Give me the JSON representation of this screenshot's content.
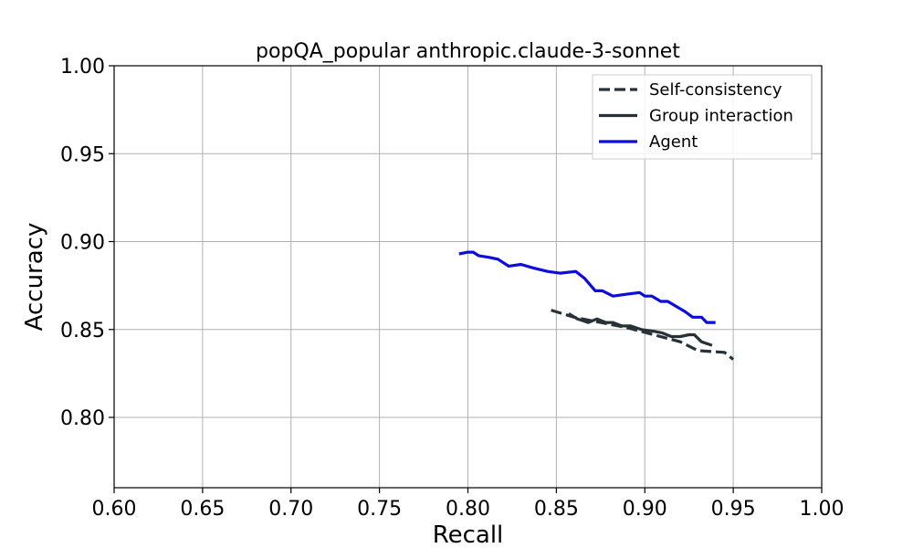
{
  "chart_data": {
    "type": "line",
    "title": "popQA_popular anthropic.claude-3-sonnet",
    "xlabel": "Recall",
    "ylabel": "Accuracy",
    "xlim": [
      0.6,
      1.0
    ],
    "ylim": [
      0.76,
      1.0
    ],
    "xticks": [
      "0.60",
      "0.65",
      "0.70",
      "0.75",
      "0.80",
      "0.85",
      "0.90",
      "0.95",
      "1.00"
    ],
    "yticks": [
      "0.80",
      "0.85",
      "0.90",
      "0.95",
      "1.00"
    ],
    "grid": true,
    "legend_position": "top-right",
    "series": [
      {
        "name": "Self-consistency",
        "style": "dashed",
        "color": "#263238",
        "x": [
          0.847,
          0.86,
          0.875,
          0.89,
          0.905,
          0.92,
          0.93,
          0.945,
          0.95
        ],
        "y": [
          0.861,
          0.857,
          0.854,
          0.851,
          0.847,
          0.843,
          0.838,
          0.837,
          0.833
        ]
      },
      {
        "name": "Group interaction",
        "style": "solid",
        "color": "#263238",
        "x": [
          0.857,
          0.862,
          0.868,
          0.873,
          0.878,
          0.882,
          0.887,
          0.892,
          0.898,
          0.905,
          0.91,
          0.915,
          0.92,
          0.925,
          0.928,
          0.932,
          0.938
        ],
        "y": [
          0.859,
          0.856,
          0.854,
          0.856,
          0.854,
          0.854,
          0.852,
          0.852,
          0.85,
          0.849,
          0.848,
          0.846,
          0.846,
          0.847,
          0.847,
          0.843,
          0.841
        ]
      },
      {
        "name": "Agent",
        "style": "solid",
        "color": "#0c0cdc",
        "x": [
          0.795,
          0.8,
          0.803,
          0.806,
          0.812,
          0.817,
          0.823,
          0.83,
          0.837,
          0.845,
          0.852,
          0.861,
          0.866,
          0.872,
          0.876,
          0.882,
          0.889,
          0.897,
          0.9,
          0.904,
          0.909,
          0.913,
          0.918,
          0.923,
          0.927,
          0.932,
          0.935,
          0.94
        ],
        "y": [
          0.893,
          0.894,
          0.894,
          0.892,
          0.891,
          0.89,
          0.886,
          0.887,
          0.885,
          0.883,
          0.882,
          0.883,
          0.879,
          0.872,
          0.872,
          0.869,
          0.87,
          0.871,
          0.869,
          0.869,
          0.866,
          0.866,
          0.863,
          0.86,
          0.857,
          0.857,
          0.854,
          0.854
        ]
      }
    ]
  }
}
